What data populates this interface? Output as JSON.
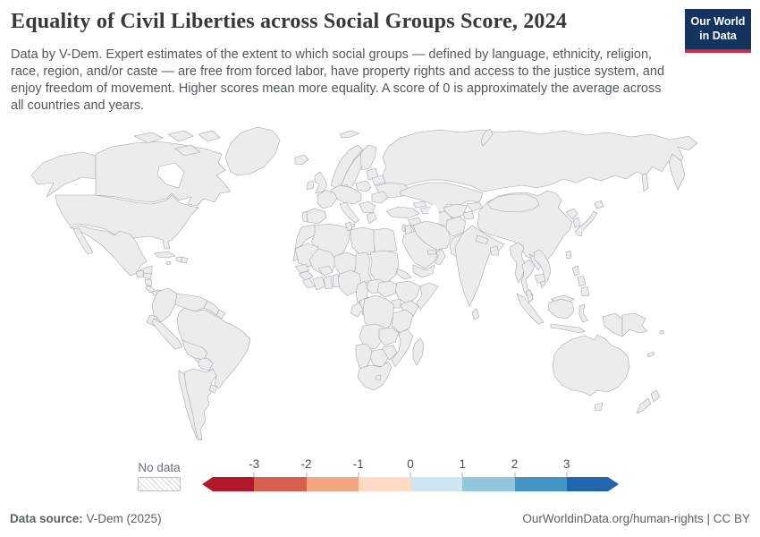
{
  "header": {
    "title": "Equality of Civil Liberties across Social Groups Score, 2024",
    "subtitle": "Data by V-Dem. Expert estimates of the extent to which social groups — defined by language, ethnicity, religion, race, region, and/or caste — are free from forced labor, have property rights and access to the justice system, and enjoy freedom of movement. Higher scores mean more equality. A score of 0 is approximately the average across all countries and years.",
    "logo_line1": "Our World",
    "logo_line2": "in Data"
  },
  "legend": {
    "no_data_label": "No data",
    "ticks": [
      "-3",
      "-2",
      "-1",
      "0",
      "1",
      "2",
      "3"
    ],
    "bin_colors": [
      "#b2182b",
      "#d6604d",
      "#f4a582",
      "#fddbc7",
      "#d1e5f0",
      "#92c5de",
      "#4393c3",
      "#2166ac"
    ]
  },
  "footer": {
    "source_label": "Data source:",
    "source_value": " V-Dem (2025)",
    "right_text": "OurWorldinData.org/human-rights | CC BY"
  },
  "map": {
    "border_color": "#9aa4ac",
    "no_data_border": "#c2c2c2",
    "countries": {
      "usa": {
        "name": "United States",
        "color": "#d5e6f0"
      },
      "canada": {
        "name": "Canada",
        "color": "#fbd9c5"
      },
      "greenland": {
        "name": "Greenland",
        "no_data": true
      },
      "mexico": {
        "name": "Mexico",
        "color": "#f9d3bc"
      },
      "guatemala": {
        "name": "Guatemala",
        "color": "#f2a17f"
      },
      "honduras": {
        "name": "Honduras",
        "color": "#fbdcc9"
      },
      "nicaragua": {
        "name": "Nicaragua",
        "color": "#d6604d"
      },
      "costa_rica": {
        "name": "Costa Rica",
        "color": "#2166ac"
      },
      "panama": {
        "name": "Panama",
        "color": "#f2a17f"
      },
      "cuba": {
        "name": "Cuba",
        "color": "#a8d0e4"
      },
      "haiti": {
        "name": "Haiti",
        "color": "#ef9a77"
      },
      "dominican_republic": {
        "name": "Dominican Republic",
        "color": "#fbdcc9"
      },
      "jamaica": {
        "name": "Jamaica",
        "color": "#a8d0e4"
      },
      "colombia": {
        "name": "Colombia",
        "color": "#d3e4ef"
      },
      "venezuela": {
        "name": "Venezuela",
        "color": "#d3e4ef"
      },
      "guyana": {
        "name": "Guyana",
        "color": "#d3e4ef"
      },
      "suriname": {
        "name": "Suriname",
        "color": "#d3e4ef"
      },
      "ecuador": {
        "name": "Ecuador",
        "color": "#d3e4ef"
      },
      "peru": {
        "name": "Peru",
        "color": "#d3e4ef"
      },
      "brazil": {
        "name": "Brazil",
        "color": "#d8e8f2"
      },
      "bolivia": {
        "name": "Bolivia",
        "color": "#86badb"
      },
      "paraguay": {
        "name": "Paraguay",
        "color": "#f2a17f"
      },
      "chile": {
        "name": "Chile",
        "color": "#86badb"
      },
      "argentina": {
        "name": "Argentina",
        "color": "#86badb"
      },
      "uruguay": {
        "name": "Uruguay",
        "color": "#a8d0e4"
      },
      "iceland": {
        "name": "Iceland",
        "color": "#4a90c2"
      },
      "uk": {
        "name": "United Kingdom",
        "color": "#a8d0e4"
      },
      "ireland": {
        "name": "Ireland",
        "color": "#4a90c2"
      },
      "norway": {
        "name": "Norway",
        "color": "#2f74b1"
      },
      "svalbard": {
        "name": "Svalbard",
        "color": "#4a90c2"
      },
      "sweden": {
        "name": "Sweden",
        "color": "#2f74b1"
      },
      "finland": {
        "name": "Finland",
        "color": "#2f74b1"
      },
      "denmark": {
        "name": "Denmark",
        "color": "#2f74b1"
      },
      "baltic_states": {
        "name": "Baltic states",
        "color": "#4a90c2"
      },
      "germany": {
        "name": "Germany",
        "color": "#2f74b1"
      },
      "poland": {
        "name": "Poland",
        "color": "#a8d0e4"
      },
      "belarus": {
        "name": "Belarus",
        "color": "#fbdcc9"
      },
      "ukraine": {
        "name": "Ukraine",
        "color": "#d3e4ef"
      },
      "france": {
        "name": "France",
        "color": "#4a90c2"
      },
      "spain": {
        "name": "Spain",
        "color": "#4a90c2"
      },
      "portugal": {
        "name": "Portugal",
        "color": "#4a90c2"
      },
      "italy": {
        "name": "Italy",
        "color": "#4a90c2"
      },
      "balkans": {
        "name": "Balkans",
        "color": "#d3e4ef"
      },
      "romania": {
        "name": "Romania",
        "color": "#d3e4ef"
      },
      "greece": {
        "name": "Greece",
        "color": "#a8d0e4"
      },
      "turkey": {
        "name": "Turkey",
        "color": "#f2a17f"
      },
      "georgia": {
        "name": "Georgia",
        "color": "#4a90c2"
      },
      "azerbaijan": {
        "name": "Azerbaijan",
        "color": "#fbdcc9"
      },
      "russia": {
        "name": "Russia",
        "color": "#fbd8c3"
      },
      "kazakhstan": {
        "name": "Kazakhstan",
        "color": "#c9dfed"
      },
      "uzbekistan": {
        "name": "Uzbekistan",
        "color": "#fbdcc9"
      },
      "turkmenistan": {
        "name": "Turkmenistan",
        "color": "#f2a17f"
      },
      "kyrgyzstan": {
        "name": "Kyrgyzstan",
        "color": "#d3e4ef"
      },
      "tajikistan": {
        "name": "Tajikistan",
        "color": "#f2a17f"
      },
      "iran": {
        "name": "Iran",
        "color": "#f2a17f"
      },
      "afghanistan": {
        "name": "Afghanistan",
        "color": "#c6483d"
      },
      "pakistan": {
        "name": "Pakistan",
        "color": "#f3a47f"
      },
      "india": {
        "name": "India",
        "color": "#fce3d3"
      },
      "nepal": {
        "name": "Nepal",
        "color": "#a8d0e4"
      },
      "bangladesh": {
        "name": "Bangladesh",
        "color": "#fbdcc9"
      },
      "sri_lanka": {
        "name": "Sri Lanka",
        "color": "#a8d0e4"
      },
      "china": {
        "name": "China",
        "color": "#c84a3e"
      },
      "mongolia": {
        "name": "Mongolia",
        "color": "#3d85bc"
      },
      "taiwan": {
        "name": "Taiwan",
        "color": "#2a6fae"
      },
      "north_korea": {
        "name": "North Korea",
        "color": "#fbdcc9"
      },
      "south_korea": {
        "name": "South Korea",
        "color": "#a8d0e4"
      },
      "japan": {
        "name": "Japan",
        "color": "#2a6fae"
      },
      "myanmar": {
        "name": "Myanmar",
        "color": "#e58a68"
      },
      "thailand": {
        "name": "Thailand",
        "color": "#fbdcc9"
      },
      "laos": {
        "name": "Laos",
        "color": "#fbdcc9"
      },
      "cambodia": {
        "name": "Cambodia",
        "color": "#fbdcc9"
      },
      "vietnam": {
        "name": "Vietnam",
        "color": "#a8d0e4"
      },
      "malaysia": {
        "name": "Malaysia",
        "color": "#a8d0e4"
      },
      "indonesia": {
        "name": "Indonesia",
        "color": "#d3e4ef"
      },
      "papua_new_guinea": {
        "name": "Papua New Guinea",
        "color": "#8fc3de"
      },
      "philippines": {
        "name": "Philippines",
        "color": "#a8d0e4"
      },
      "australia": {
        "name": "Australia",
        "color": "#87bada"
      },
      "new_zealand": {
        "name": "New Zealand",
        "color": "#87bada"
      },
      "fiji": {
        "name": "Fiji",
        "color": "#a8d0e4"
      },
      "new_caledonia": {
        "name": "New Caledonia",
        "color": "#a8d0e4"
      },
      "syria": {
        "name": "Syria",
        "color": "#d6604d"
      },
      "iraq": {
        "name": "Iraq",
        "color": "#d6604d"
      },
      "jordan": {
        "name": "Jordan",
        "color": "#fbdcc9"
      },
      "israel": {
        "name": "Israel",
        "color": "#a8d0e4"
      },
      "saudi_arabia": {
        "name": "Saudi Arabia",
        "color": "#f2a17f"
      },
      "yemen": {
        "name": "Yemen",
        "color": "#d6604d"
      },
      "oman": {
        "name": "Oman",
        "color": "#a8d0e4"
      },
      "uae": {
        "name": "United Arab Emirates",
        "color": "#fbdcc9"
      },
      "morocco": {
        "name": "Morocco",
        "color": "#f2a17f"
      },
      "western_sahara": {
        "name": "Western Sahara",
        "no_data": true
      },
      "algeria": {
        "name": "Algeria",
        "color": "#a8d0e4"
      },
      "tunisia": {
        "name": "Tunisia",
        "color": "#a8d0e4"
      },
      "libya": {
        "name": "Libya",
        "color": "#fbdcc9"
      },
      "egypt": {
        "name": "Egypt",
        "color": "#fbdcc9"
      },
      "mauritania": {
        "name": "Mauritania",
        "color": "#f2a17f"
      },
      "mali": {
        "name": "Mali",
        "color": "#4a90c2"
      },
      "niger": {
        "name": "Niger",
        "color": "#3a82ba"
      },
      "chad": {
        "name": "Chad",
        "color": "#fbdcc9"
      },
      "sudan": {
        "name": "Sudan",
        "color": "#fbdcc9"
      },
      "eritrea": {
        "name": "Eritrea",
        "color": "#e58a68"
      },
      "senegal": {
        "name": "Senegal",
        "color": "#6aa5cd"
      },
      "guinea": {
        "name": "Guinea",
        "color": "#a8d0e4"
      },
      "sierra_leone": {
        "name": "Sierra Leone",
        "color": "#d3e4ef"
      },
      "ivory_coast": {
        "name": "Cote d'Ivoire",
        "color": "#8fc0dd"
      },
      "ghana": {
        "name": "Ghana",
        "color": "#cfe3ef"
      },
      "benin": {
        "name": "Benin",
        "color": "#a8d0e4"
      },
      "burkina_faso": {
        "name": "Burkina Faso",
        "color": "#4a90c2"
      },
      "nigeria": {
        "name": "Nigeria",
        "color": "#4a92c2"
      },
      "cameroon": {
        "name": "Cameroon",
        "color": "#fbdcc9"
      },
      "central_african_republic": {
        "name": "Central African Republic",
        "color": "#d3e4ef"
      },
      "south_sudan": {
        "name": "South Sudan",
        "color": "#d6604d"
      },
      "ethiopia": {
        "name": "Ethiopia",
        "color": "#d3e4ef"
      },
      "somalia": {
        "name": "Somalia",
        "color": "#fbdcc9"
      },
      "kenya": {
        "name": "Kenya",
        "color": "#a8d0e4"
      },
      "uganda": {
        "name": "Uganda",
        "color": "#d3e4ef"
      },
      "drc": {
        "name": "Democratic Republic of Congo",
        "color": "#d3e4ef"
      },
      "congo": {
        "name": "Congo",
        "color": "#a8d0e4"
      },
      "gabon": {
        "name": "Gabon",
        "color": "#2d74b2"
      },
      "tanzania": {
        "name": "Tanzania",
        "color": "#4393c3"
      },
      "angola": {
        "name": "Angola",
        "color": "#a8d0e4"
      },
      "zambia": {
        "name": "Zambia",
        "color": "#a8d0e4"
      },
      "mozambique": {
        "name": "Mozambique",
        "color": "#a8d0e4"
      },
      "zimbabwe": {
        "name": "Zimbabwe",
        "color": "#a8d0e4"
      },
      "botswana": {
        "name": "Botswana",
        "color": "#d3e4ef"
      },
      "namibia": {
        "name": "Namibia",
        "color": "#cfe2ee"
      },
      "south_africa": {
        "name": "South Africa",
        "color": "#4a90c2"
      },
      "lesotho": {
        "name": "Lesotho",
        "color": "#a8d0e4"
      },
      "madagascar": {
        "name": "Madagascar",
        "color": "#a8d0e4"
      }
    }
  }
}
